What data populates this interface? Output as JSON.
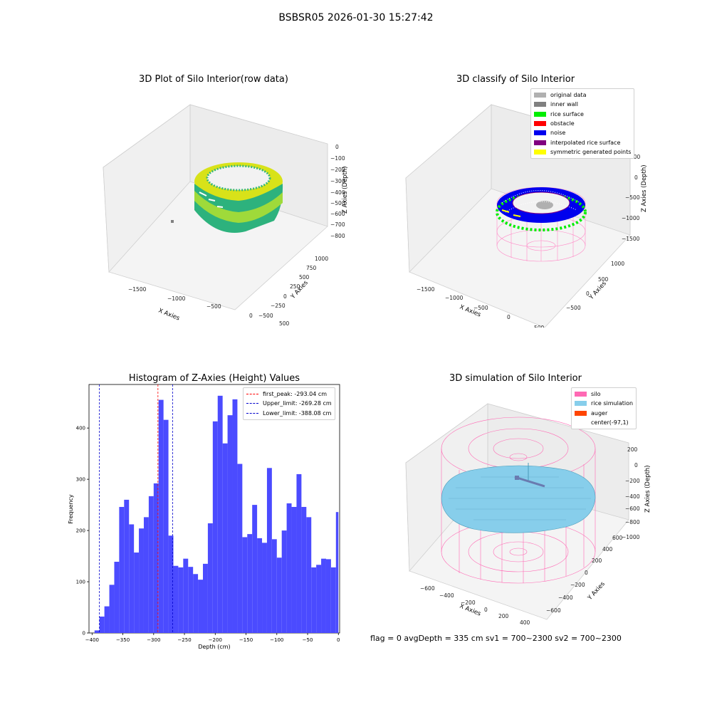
{
  "figure": {
    "suptitle": "BSBSR05 2026-01-30 15:27:42",
    "status_line": "flag = 0     avgDepth = 335 cm  sv1 = 700~2300  sv2 = 700~2300"
  },
  "chart_data": [
    {
      "type": "scatter3d",
      "title": "3D Plot of Silo Interior(row data)",
      "xlabel": "X Axies",
      "ylabel": "Y Axies",
      "zlabel": "Z Axies (Depth)",
      "xticks": [
        "−1500",
        "−1000",
        "−500",
        "0",
        "500"
      ],
      "yticks": [
        "−500",
        "−250",
        "0",
        "250",
        "500",
        "750",
        "1000"
      ],
      "zticks": [
        "0",
        "−100",
        "−200",
        "−300",
        "−400",
        "−500",
        "−600",
        "−700",
        "−800"
      ],
      "colormap": "viridis",
      "grid": true
    },
    {
      "type": "scatter3d",
      "title": "3D classify of Silo Interior",
      "xlabel": "X Axies",
      "ylabel": "Y Axies",
      "zlabel": "Z Axies (Depth)",
      "xticks": [
        "−1500",
        "−1000",
        "−500",
        "0",
        "500"
      ],
      "yticks": [
        "−500",
        "0",
        "500",
        "1000"
      ],
      "zticks": [
        "500",
        "0",
        "−500",
        "−1000",
        "−1500"
      ],
      "legend_position": "top-right",
      "legend": [
        {
          "label": "original data",
          "color": "#b0b0b0"
        },
        {
          "label": "inner wall",
          "color": "#808080"
        },
        {
          "label": "rice surface",
          "color": "#00ee00"
        },
        {
          "label": "obstacle",
          "color": "#ff0000"
        },
        {
          "label": "noise",
          "color": "#0000ee"
        },
        {
          "label": "interpolated rice surface",
          "color": "#800080"
        },
        {
          "label": "symmetric generated points",
          "color": "#ffff00"
        }
      ],
      "grid": true
    },
    {
      "type": "bar",
      "title": "Histogram of Z-Axies (Height) Values",
      "xlabel": "Depth (cm)",
      "ylabel": "Frequency",
      "xlim": [
        -405,
        2
      ],
      "ylim": [
        0,
        485
      ],
      "xticks": [
        -400,
        -350,
        -300,
        -250,
        -200,
        -150,
        -100,
        -50,
        0
      ],
      "xtick_labels": [
        "−400",
        "−350",
        "−300",
        "−250",
        "−200",
        "−150",
        "−100",
        "−50",
        "0"
      ],
      "yticks": [
        0,
        100,
        200,
        300,
        400
      ],
      "bar_color": "#4b4bff",
      "bins": [
        {
          "x0": -396,
          "x1": -388,
          "value": 5
        },
        {
          "x0": -388,
          "x1": -380,
          "value": 32
        },
        {
          "x0": -380,
          "x1": -372,
          "value": 52
        },
        {
          "x0": -372,
          "x1": -364,
          "value": 94
        },
        {
          "x0": -364,
          "x1": -356,
          "value": 139
        },
        {
          "x0": -356,
          "x1": -348,
          "value": 246
        },
        {
          "x0": -348,
          "x1": -340,
          "value": 260
        },
        {
          "x0": -340,
          "x1": -332,
          "value": 212
        },
        {
          "x0": -332,
          "x1": -324,
          "value": 157
        },
        {
          "x0": -324,
          "x1": -316,
          "value": 204
        },
        {
          "x0": -316,
          "x1": -308,
          "value": 226
        },
        {
          "x0": -308,
          "x1": -300,
          "value": 267
        },
        {
          "x0": -300,
          "x1": -292,
          "value": 292
        },
        {
          "x0": -292,
          "x1": -284,
          "value": 455
        },
        {
          "x0": -284,
          "x1": -276,
          "value": 416
        },
        {
          "x0": -276,
          "x1": -268,
          "value": 190
        },
        {
          "x0": -268,
          "x1": -260,
          "value": 131
        },
        {
          "x0": -260,
          "x1": -252,
          "value": 128
        },
        {
          "x0": -252,
          "x1": -244,
          "value": 145
        },
        {
          "x0": -244,
          "x1": -236,
          "value": 129
        },
        {
          "x0": -236,
          "x1": -228,
          "value": 115
        },
        {
          "x0": -228,
          "x1": -220,
          "value": 104
        },
        {
          "x0": -220,
          "x1": -212,
          "value": 135
        },
        {
          "x0": -212,
          "x1": -204,
          "value": 214
        },
        {
          "x0": -204,
          "x1": -196,
          "value": 413
        },
        {
          "x0": -196,
          "x1": -188,
          "value": 463
        },
        {
          "x0": -188,
          "x1": -180,
          "value": 370
        },
        {
          "x0": -180,
          "x1": -172,
          "value": 425
        },
        {
          "x0": -172,
          "x1": -164,
          "value": 456
        },
        {
          "x0": -164,
          "x1": -156,
          "value": 330
        },
        {
          "x0": -156,
          "x1": -148,
          "value": 187
        },
        {
          "x0": -148,
          "x1": -140,
          "value": 193
        },
        {
          "x0": -140,
          "x1": -132,
          "value": 250
        },
        {
          "x0": -132,
          "x1": -124,
          "value": 185
        },
        {
          "x0": -124,
          "x1": -116,
          "value": 176
        },
        {
          "x0": -116,
          "x1": -108,
          "value": 322
        },
        {
          "x0": -108,
          "x1": -100,
          "value": 183
        },
        {
          "x0": -100,
          "x1": -92,
          "value": 147
        },
        {
          "x0": -92,
          "x1": -84,
          "value": 200
        },
        {
          "x0": -84,
          "x1": -76,
          "value": 253
        },
        {
          "x0": -76,
          "x1": -68,
          "value": 246
        },
        {
          "x0": -68,
          "x1": -60,
          "value": 310
        },
        {
          "x0": -60,
          "x1": -52,
          "value": 246
        },
        {
          "x0": -52,
          "x1": -44,
          "value": 226
        },
        {
          "x0": -44,
          "x1": -36,
          "value": 128
        },
        {
          "x0": -36,
          "x1": -28,
          "value": 133
        },
        {
          "x0": -28,
          "x1": -20,
          "value": 145
        },
        {
          "x0": -20,
          "x1": -12,
          "value": 144
        },
        {
          "x0": -12,
          "x1": -4,
          "value": 128
        },
        {
          "x0": -4,
          "x1": 0,
          "value": 236
        }
      ],
      "vlines": [
        {
          "x": -293.04,
          "label": "first_peak: -293.04 cm",
          "color": "#ff0000"
        },
        {
          "x": -269.28,
          "label": "Upper_limit: -269.28 cm",
          "color": "#0000cc"
        },
        {
          "x": -388.08,
          "label": "Lower_limit: -388.08 cm",
          "color": "#0000cc"
        }
      ],
      "legend_position": "top-right"
    },
    {
      "type": "surface3d",
      "title": "3D simulation of Silo Interior",
      "xlabel": "X Axies",
      "ylabel": "Y Axies",
      "zlabel": "Z Axies (Depth)",
      "xticks": [
        "−600",
        "−400",
        "−200",
        "0",
        "200",
        "400"
      ],
      "yticks": [
        "−600",
        "−400",
        "−200",
        "0",
        "200",
        "400",
        "600"
      ],
      "zticks": [
        "200",
        "0",
        "−200",
        "−400",
        "−600",
        "−800",
        "−1000"
      ],
      "legend_position": "top-right",
      "legend": [
        {
          "label": "silo",
          "color": "#ff69b4"
        },
        {
          "label": "rice simulation",
          "color": "#87ceeb"
        },
        {
          "label": "auger",
          "color": "#ff4500"
        },
        {
          "label": "center(-97,1)",
          "color": "#ffffff"
        }
      ],
      "grid": true
    }
  ]
}
